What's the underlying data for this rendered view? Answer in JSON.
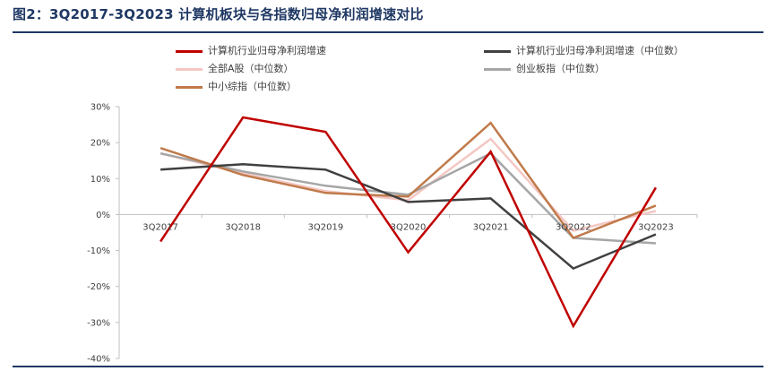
{
  "figure_title": "图2：3Q2017-3Q2023 计算机板块与各指数归母净利润增速对比",
  "chart_data": {
    "type": "line",
    "title": "",
    "xlabel": "",
    "ylabel": "",
    "categories": [
      "3Q2017",
      "3Q2018",
      "3Q2019",
      "3Q2020",
      "3Q2021",
      "3Q2022",
      "3Q2023"
    ],
    "ylim": [
      -40,
      30
    ],
    "yticks": [
      -40,
      -30,
      -20,
      -10,
      0,
      10,
      20,
      30
    ],
    "ytick_labels": [
      "-40%",
      "-30%",
      "-20%",
      "-10%",
      "0%",
      "10%",
      "20%",
      "30%"
    ],
    "grid": false,
    "legend_position": "top",
    "series": [
      {
        "name": "计算机行业归母净利润增速",
        "color": "#c00000",
        "values": [
          -7.5,
          27.0,
          23.0,
          -10.5,
          17.5,
          -31.0,
          7.5
        ]
      },
      {
        "name": "计算机行业归母净利润增速（中位数）",
        "color": "#404040",
        "values": [
          12.5,
          14.0,
          12.5,
          3.5,
          4.5,
          -15.0,
          -5.5
        ]
      },
      {
        "name": "全部A股（中位数）",
        "color": "#f4c7c3",
        "values": [
          17.0,
          11.5,
          6.5,
          4.0,
          21.0,
          -4.5,
          1.0
        ]
      },
      {
        "name": "创业板指（中位数）",
        "color": "#a6a6a6",
        "values": [
          17.0,
          12.0,
          8.0,
          5.5,
          17.0,
          -6.5,
          -8.0
        ]
      },
      {
        "name": "中小综指（中位数）",
        "color": "#c07a4a",
        "values": [
          18.5,
          11.0,
          6.0,
          5.0,
          25.5,
          -6.5,
          2.5
        ]
      }
    ]
  }
}
